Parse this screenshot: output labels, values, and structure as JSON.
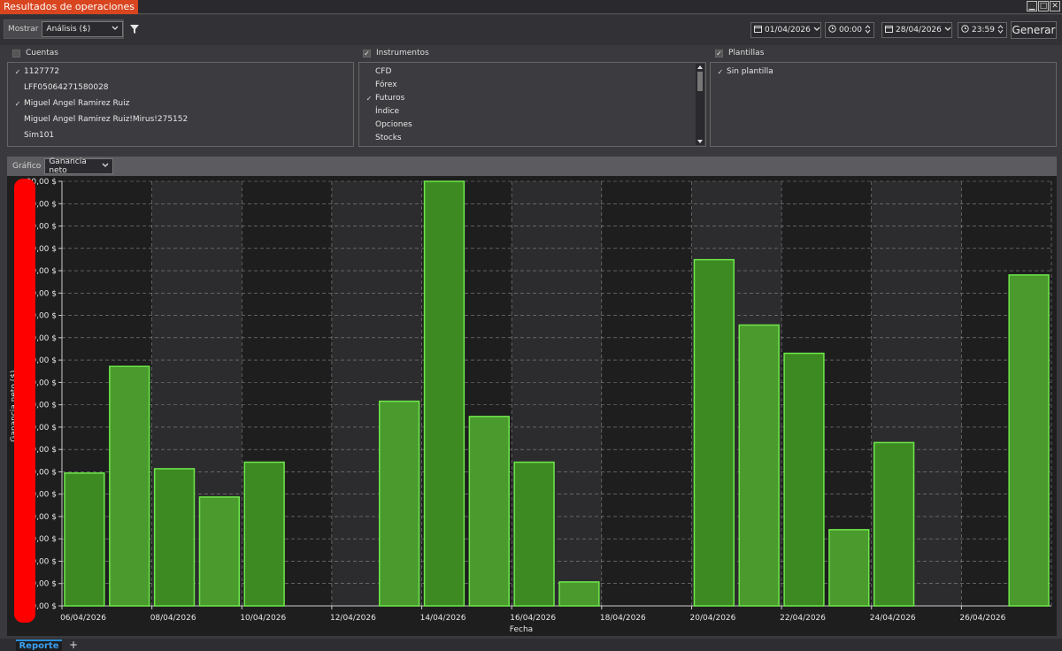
{
  "window": {
    "title": "Resultados de operaciones",
    "buttons": [
      "▁",
      "□",
      "✕"
    ]
  },
  "toolbar": {
    "mostrar_label": "Mostrar",
    "mostrar_value": "Análisis ($)",
    "filter_icon": "filter-icon",
    "start_date": "01/04/2026",
    "start_time": "00:00",
    "end_date": "28/04/2026",
    "end_time": "23:59",
    "generate_label": "Generar"
  },
  "sections": {
    "cuentas": {
      "label": "Cuentas",
      "checked": false,
      "items": [
        {
          "label": "1127772",
          "checked": true
        },
        {
          "label": "LFF05064271580028",
          "checked": false
        },
        {
          "label": "Miguel Angel Ramirez Ruiz",
          "checked": true
        },
        {
          "label": "Miguel Angel Ramirez Ruiz!Mirus!275152",
          "checked": false
        },
        {
          "label": "Sim101",
          "checked": false
        }
      ]
    },
    "instrumentos": {
      "label": "Instrumentos",
      "checked": true,
      "items": [
        {
          "label": "CFD",
          "checked": false
        },
        {
          "label": "Fórex",
          "checked": false
        },
        {
          "label": "Futuros",
          "checked": true
        },
        {
          "label": "Índice",
          "checked": false
        },
        {
          "label": "Opciones",
          "checked": false
        },
        {
          "label": "Stocks",
          "checked": false
        }
      ]
    },
    "plantillas": {
      "label": "Plantillas",
      "checked": true,
      "items": [
        {
          "label": "Sin plantilla",
          "checked": true
        }
      ]
    }
  },
  "chart_header": {
    "label": "Gráfico",
    "select_value": "Ganancia neto"
  },
  "tabs": {
    "active": "Reporte",
    "add": "+"
  },
  "chart_data": {
    "type": "bar",
    "xlabel": "Fecha",
    "ylabel": "Ganancia neto ($)",
    "ytick_labels": [
      "0,00 $",
      "00,00 $",
      "00,00 $",
      "00,00 $",
      "00,00 $",
      "00,00 $",
      "00,00 $",
      "00,00 $",
      "00,00 $",
      "00,00 $",
      "00,00 $",
      "00,00 $",
      "00,00 $",
      "00,00 $",
      "00,00 $",
      "00,00 $",
      "00,00 $",
      "00,00 $",
      "00,00 $",
      "00,00 $"
    ],
    "xtick_labels": [
      "06/04/2026",
      "08/04/2026",
      "10/04/2026",
      "12/04/2026",
      "14/04/2026",
      "16/04/2026",
      "18/04/2026",
      "20/04/2026",
      "22/04/2026",
      "24/04/2026",
      "26/04/2026"
    ],
    "ylim": [
      0,
      19.5
    ],
    "categories": [
      "06/04/2026",
      "07/04/2026",
      "08/04/2026",
      "09/04/2026",
      "10/04/2026",
      "11/04/2026",
      "12/04/2026",
      "13/04/2026",
      "14/04/2026",
      "15/04/2026",
      "16/04/2026",
      "17/04/2026",
      "18/04/2026",
      "19/04/2026",
      "20/04/2026",
      "21/04/2026",
      "22/04/2026",
      "23/04/2026",
      "24/04/2026",
      "25/04/2026",
      "26/04/2026",
      "27/04/2026"
    ],
    "values": [
      6.1,
      11.0,
      6.3,
      5.0,
      6.6,
      null,
      null,
      9.4,
      19.5,
      8.7,
      6.6,
      1.1,
      null,
      null,
      15.9,
      12.9,
      11.6,
      3.5,
      7.5,
      null,
      null,
      15.2
    ],
    "grid": true,
    "colors": {
      "bar_fill": "#3d8a22",
      "bar_fill_alt": "#4a9a2e",
      "bar_edge": "#6ee84a",
      "band_dark": "#1e1e1e",
      "band_light": "#2c2c2e",
      "grid": "#888888",
      "mask": "#ff0000"
    }
  }
}
